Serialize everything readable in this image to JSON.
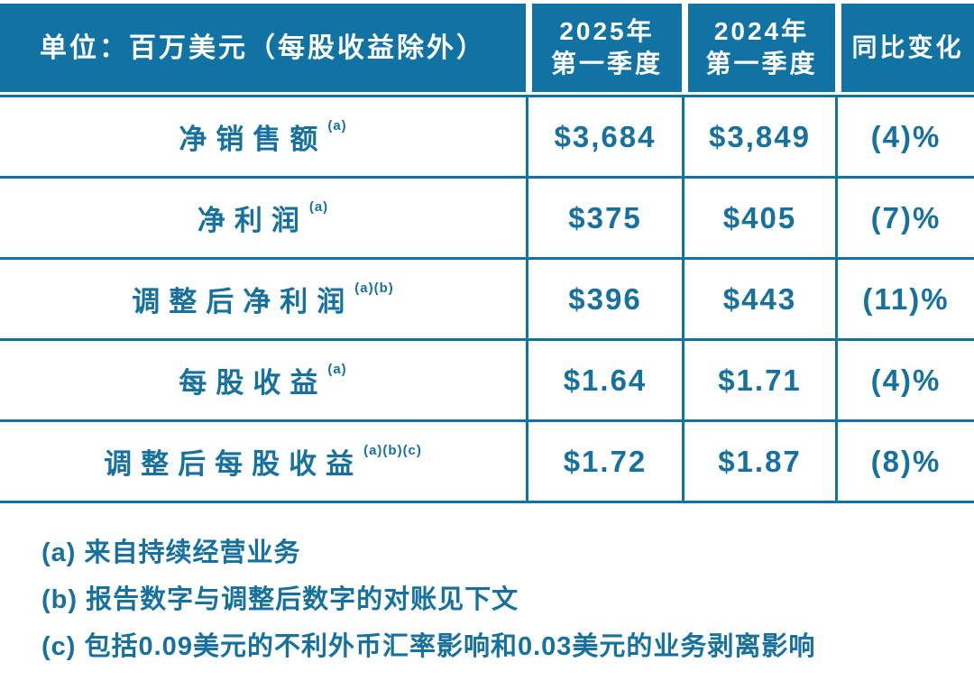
{
  "table": {
    "header": {
      "unit_label": "单位：百万美元（每股收益除外）",
      "col_2025": {
        "line1": "2025年",
        "line2": "第一季度"
      },
      "col_2024": {
        "line1": "2024年",
        "line2": "第一季度"
      },
      "col_change": "同比变化"
    },
    "rows": [
      {
        "label": "净销售额",
        "note": "(a)",
        "v2025": "$3,684",
        "v2024": "$3,849",
        "change": "(4)%"
      },
      {
        "label": "净利润",
        "note": "(a)",
        "v2025": "$375",
        "v2024": "$405",
        "change": "(7)%"
      },
      {
        "label": "调整后净利润",
        "note": "(a)(b)",
        "v2025": "$396",
        "v2024": "$443",
        "change": "(11)%"
      },
      {
        "label": "每股收益",
        "note": "(a)",
        "v2025": "$1.64",
        "v2024": "$1.71",
        "change": "(4)%"
      },
      {
        "label": "调整后每股收益",
        "note": "(a)(b)(c)",
        "v2025": "$1.72",
        "v2024": "$1.87",
        "change": "(8)%"
      }
    ]
  },
  "footnotes": [
    "(a) 来自持续经营业务",
    "(b) 报告数字与调整后数字的对账见下文",
    "(c) 包括0.09美元的不利外币汇率影响和0.03美元的业务剥离影响"
  ],
  "colors": {
    "header_background": "#1173a3",
    "text_teal": "#16719e",
    "divider": "#1173a3",
    "background": "#ffffff"
  },
  "chart_data": {
    "type": "table",
    "title": "单位：百万美元（每股收益除外）",
    "columns": [
      "单位：百万美元（每股收益除外）",
      "2025年第一季度",
      "2024年第一季度",
      "同比变化"
    ],
    "rows": [
      [
        "净销售额(a)",
        "$3,684",
        "$3,849",
        "(4)%"
      ],
      [
        "净利润(a)",
        "$375",
        "$405",
        "(7)%"
      ],
      [
        "调整后净利润(a)(b)",
        "$396",
        "$443",
        "(11)%"
      ],
      [
        "每股收益(a)",
        "$1.64",
        "$1.71",
        "(4)%"
      ],
      [
        "调整后每股收益(a)(b)(c)",
        "$1.72",
        "$1.87",
        "(8)%"
      ]
    ],
    "footnotes": [
      "(a) 来自持续经营业务",
      "(b) 报告数字与调整后数字的对账见下文",
      "(c) 包括0.09美元的不利外币汇率影响和0.03美元的业务剥离影响"
    ]
  }
}
